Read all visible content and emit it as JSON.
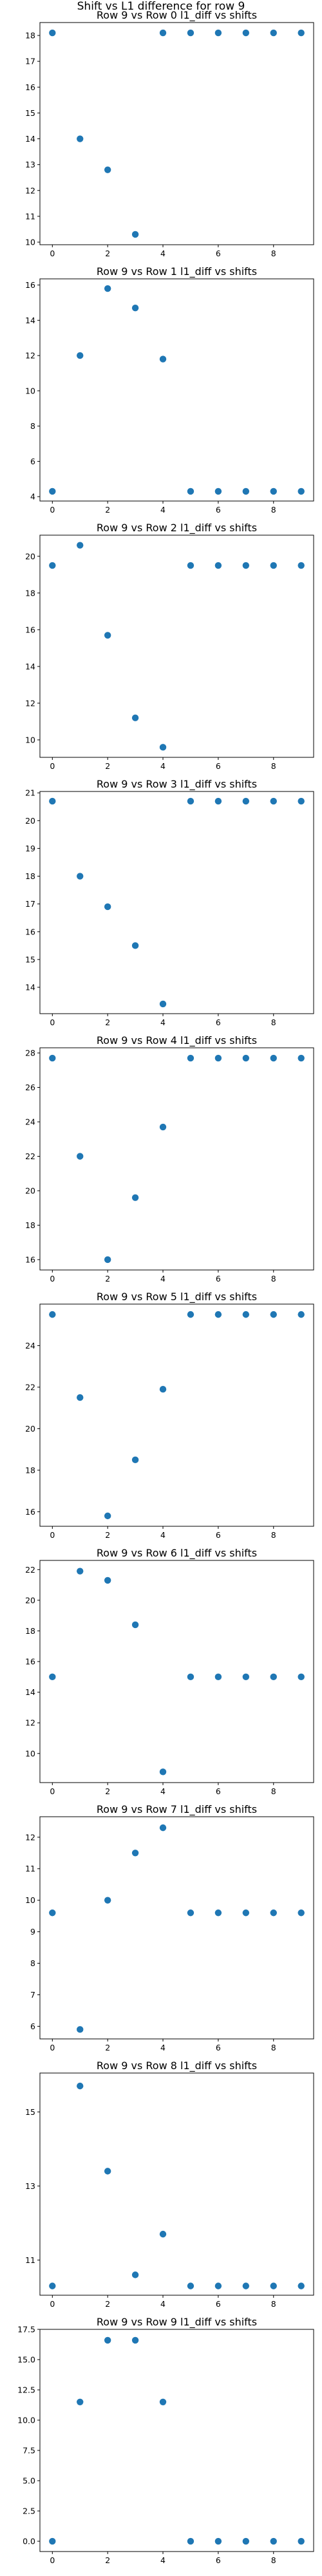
{
  "suptitle": "Shift vs L1 difference for row 9",
  "chart_data": [
    {
      "type": "scatter",
      "title": "Row 9 vs Row 0 l1_diff vs shifts",
      "x": [
        0,
        1,
        2,
        3,
        4,
        5,
        6,
        7,
        8,
        9
      ],
      "y": [
        18.1,
        14.0,
        12.8,
        10.3,
        18.1,
        18.1,
        18.1,
        18.1,
        18.1,
        18.1
      ],
      "xlim": [
        -0.45,
        9.45
      ],
      "ylim": [
        9.9,
        18.5
      ],
      "xticks": [
        0,
        2,
        4,
        6,
        8
      ],
      "yticks": [
        10,
        11,
        12,
        13,
        14,
        15,
        16,
        17,
        18
      ],
      "grid": false,
      "color": "#1f77b4"
    },
    {
      "type": "scatter",
      "title": "Row 9 vs Row 1 l1_diff vs shifts",
      "x": [
        0,
        1,
        2,
        3,
        4,
        5,
        6,
        7,
        8,
        9
      ],
      "y": [
        4.3,
        12.0,
        15.8,
        14.7,
        11.8,
        4.3,
        4.3,
        4.3,
        4.3,
        4.3
      ],
      "xlim": [
        -0.45,
        9.45
      ],
      "ylim": [
        3.75,
        16.35
      ],
      "xticks": [
        0,
        2,
        4,
        6,
        8
      ],
      "yticks": [
        4,
        6,
        8,
        10,
        12,
        14,
        16
      ],
      "grid": false,
      "color": "#1f77b4"
    },
    {
      "type": "scatter",
      "title": "Row 9 vs Row 2 l1_diff vs shifts",
      "x": [
        0,
        1,
        2,
        3,
        4,
        5,
        6,
        7,
        8,
        9
      ],
      "y": [
        19.5,
        20.6,
        15.7,
        11.2,
        9.6,
        19.5,
        19.5,
        19.5,
        19.5,
        19.5
      ],
      "xlim": [
        -0.45,
        9.45
      ],
      "ylim": [
        9.05,
        21.15
      ],
      "xticks": [
        0,
        2,
        4,
        6,
        8
      ],
      "yticks": [
        10,
        12,
        14,
        16,
        18,
        20
      ],
      "grid": false,
      "color": "#1f77b4"
    },
    {
      "type": "scatter",
      "title": "Row 9 vs Row 3 l1_diff vs shifts",
      "x": [
        0,
        1,
        2,
        3,
        4,
        5,
        6,
        7,
        8,
        9
      ],
      "y": [
        20.7,
        18.0,
        16.9,
        15.5,
        13.4,
        20.7,
        20.7,
        20.7,
        20.7,
        20.7
      ],
      "xlim": [
        -0.45,
        9.45
      ],
      "ylim": [
        13.05,
        21.05
      ],
      "xticks": [
        0,
        2,
        4,
        6,
        8
      ],
      "yticks": [
        14,
        15,
        16,
        17,
        18,
        19,
        20,
        21
      ],
      "grid": false,
      "color": "#1f77b4"
    },
    {
      "type": "scatter",
      "title": "Row 9 vs Row 4 l1_diff vs shifts",
      "x": [
        0,
        1,
        2,
        3,
        4,
        5,
        6,
        7,
        8,
        9
      ],
      "y": [
        27.7,
        22.0,
        16.0,
        19.6,
        23.7,
        27.7,
        27.7,
        27.7,
        27.7,
        27.7
      ],
      "xlim": [
        -0.45,
        9.45
      ],
      "ylim": [
        15.4,
        28.3
      ],
      "xticks": [
        0,
        2,
        4,
        6,
        8
      ],
      "yticks": [
        16,
        18,
        20,
        22,
        24,
        26,
        28
      ],
      "grid": false,
      "color": "#1f77b4"
    },
    {
      "type": "scatter",
      "title": "Row 9 vs Row 5 l1_diff vs shifts",
      "x": [
        0,
        1,
        2,
        3,
        4,
        5,
        6,
        7,
        8,
        9
      ],
      "y": [
        25.5,
        21.5,
        15.8,
        18.5,
        21.9,
        25.5,
        25.5,
        25.5,
        25.5,
        25.5
      ],
      "xlim": [
        -0.45,
        9.45
      ],
      "ylim": [
        15.3,
        26.0
      ],
      "xticks": [
        0,
        2,
        4,
        6,
        8
      ],
      "yticks": [
        16,
        18,
        20,
        22,
        24
      ],
      "grid": false,
      "color": "#1f77b4"
    },
    {
      "type": "scatter",
      "title": "Row 9 vs Row 6 l1_diff vs shifts",
      "x": [
        0,
        1,
        2,
        3,
        4,
        5,
        6,
        7,
        8,
        9
      ],
      "y": [
        15.0,
        21.9,
        21.3,
        18.4,
        8.8,
        15.0,
        15.0,
        15.0,
        15.0,
        15.0
      ],
      "xlim": [
        -0.45,
        9.45
      ],
      "ylim": [
        8.1,
        22.6
      ],
      "xticks": [
        0,
        2,
        4,
        6,
        8
      ],
      "yticks": [
        10,
        12,
        14,
        16,
        18,
        20,
        22
      ],
      "grid": false,
      "color": "#1f77b4"
    },
    {
      "type": "scatter",
      "title": "Row 9 vs Row 7 l1_diff vs shifts",
      "x": [
        0,
        1,
        2,
        3,
        4,
        5,
        6,
        7,
        8,
        9
      ],
      "y": [
        9.6,
        5.9,
        10.0,
        11.5,
        12.3,
        9.6,
        9.6,
        9.6,
        9.6,
        9.6
      ],
      "xlim": [
        -0.45,
        9.45
      ],
      "ylim": [
        5.6,
        12.65
      ],
      "xticks": [
        0,
        2,
        4,
        6,
        8
      ],
      "yticks": [
        6,
        7,
        8,
        9,
        10,
        11,
        12
      ],
      "grid": false,
      "color": "#1f77b4"
    },
    {
      "type": "scatter",
      "title": "Row 9 vs Row 8 l1_diff vs shifts",
      "x": [
        0,
        1,
        2,
        3,
        4,
        5,
        6,
        7,
        8,
        9
      ],
      "y": [
        10.3,
        15.7,
        13.4,
        10.6,
        11.7,
        10.3,
        10.3,
        10.3,
        10.3,
        10.3
      ],
      "xlim": [
        -0.45,
        9.45
      ],
      "ylim": [
        10.05,
        16.05
      ],
      "xticks": [
        0,
        2,
        4,
        6,
        8
      ],
      "yticks": [
        11,
        13,
        15
      ],
      "grid": false,
      "color": "#1f77b4"
    },
    {
      "type": "scatter",
      "title": "Row 9 vs Row 9 l1_diff vs shifts",
      "x": [
        0,
        1,
        2,
        3,
        4,
        5,
        6,
        7,
        8,
        9
      ],
      "y": [
        0.0,
        11.5,
        16.6,
        16.6,
        11.5,
        0.0,
        0.0,
        0.0,
        0.0,
        0.0
      ],
      "xlim": [
        -0.45,
        9.45
      ],
      "ylim": [
        -0.85,
        17.5
      ],
      "xticks": [
        0,
        2,
        4,
        6,
        8
      ],
      "yticks": [
        0.0,
        2.5,
        5.0,
        7.5,
        10.0,
        12.5,
        15.0,
        17.5
      ],
      "ytick_format": "fixed1",
      "grid": false,
      "color": "#1f77b4"
    }
  ]
}
